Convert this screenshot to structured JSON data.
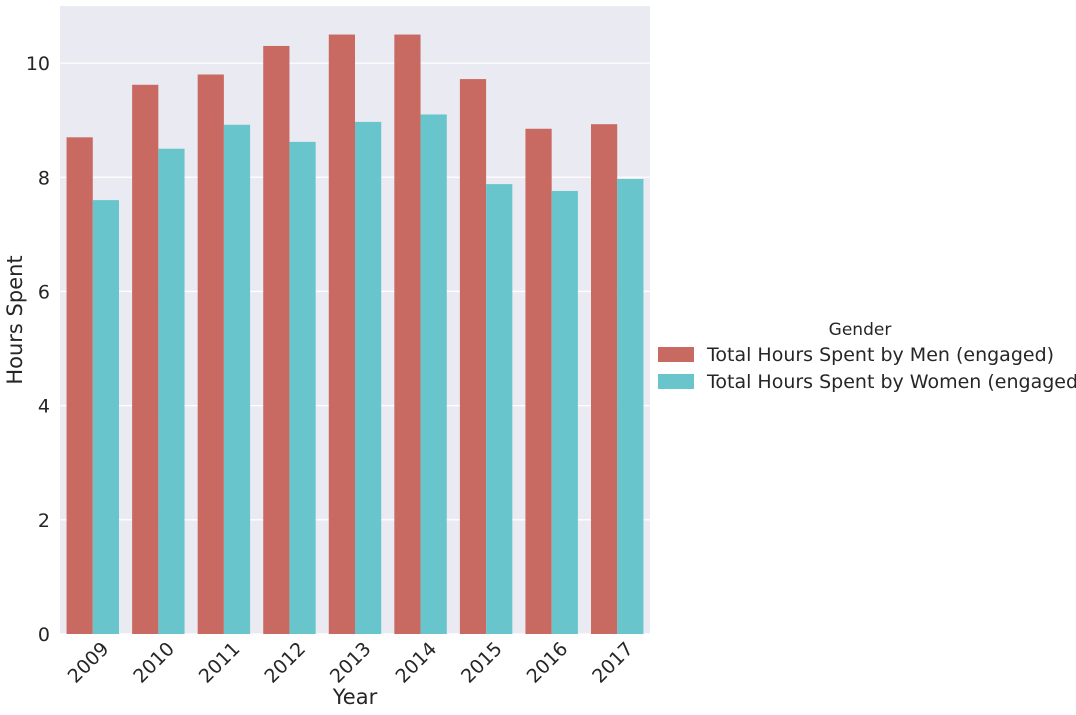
{
  "chart_data": {
    "type": "bar",
    "title": "",
    "xlabel": "Year",
    "ylabel": "Hours Spent",
    "categories": [
      "2009",
      "2010",
      "2011",
      "2012",
      "2013",
      "2014",
      "2015",
      "2016",
      "2017"
    ],
    "series": [
      {
        "name": "Total Hours Spent by Men (engaged)",
        "color": "#c96a62",
        "values": [
          8.7,
          9.62,
          9.8,
          10.3,
          10.5,
          10.5,
          9.72,
          8.85,
          8.93
        ]
      },
      {
        "name": "Total Hours Spent by Women (engaged)",
        "color": "#68c5cc",
        "values": [
          7.6,
          8.5,
          8.92,
          8.62,
          8.97,
          9.1,
          7.88,
          7.76,
          7.97
        ]
      }
    ],
    "ylim": [
      0,
      11
    ],
    "yticks": [
      0,
      2,
      4,
      6,
      8,
      10
    ],
    "ytick_labels": [
      "0",
      "2",
      "4",
      "6",
      "8",
      "10"
    ],
    "grid": true,
    "legend": {
      "title": "Gender",
      "placement": "right"
    }
  }
}
